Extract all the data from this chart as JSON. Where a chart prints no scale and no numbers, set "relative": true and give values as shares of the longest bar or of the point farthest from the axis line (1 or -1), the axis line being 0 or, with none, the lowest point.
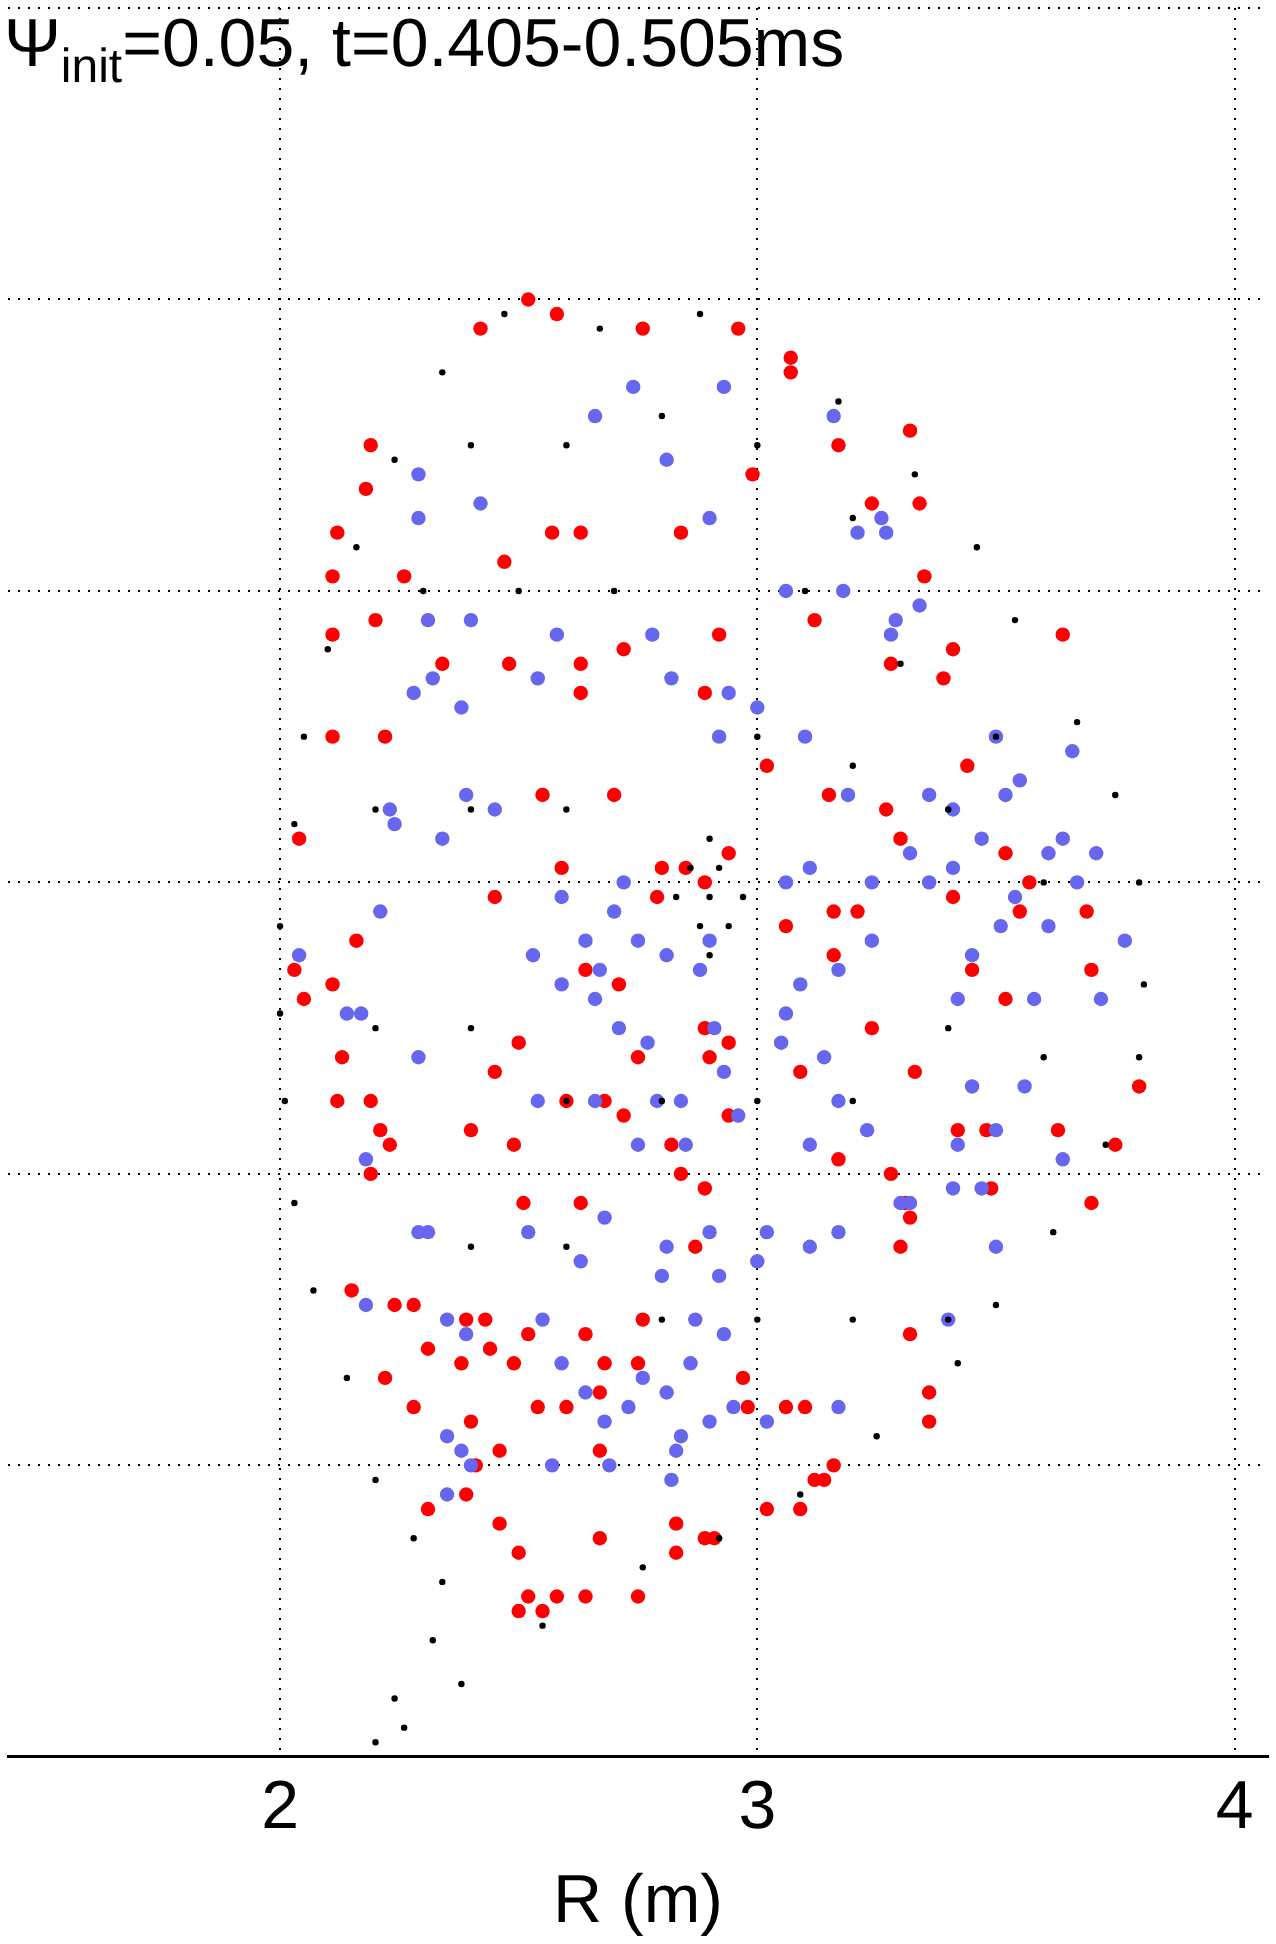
{
  "chart_data": {
    "type": "scatter",
    "title": "Ψ$_{init}$=0.05, t=0.405-0.505ms",
    "xlabel": "R (m)",
    "xlim": [
      1.43,
      4.07
    ],
    "xticks": [
      2,
      3,
      4
    ],
    "relative": true,
    "grid": true,
    "tick_labels": "x",
    "marker": "circle",
    "legend": false,
    "series": [
      {
        "color": "#000000",
        "x": [
          2.47,
          2.67,
          2.88,
          3.17,
          3.33,
          3.46,
          3.54,
          3.67,
          3.75,
          3.8,
          3.81,
          3.8,
          3.73,
          3.62,
          3.5,
          3.42,
          3.25,
          3.09,
          2.92,
          2.76,
          2.55,
          2.38,
          2.26,
          2.2,
          2.24,
          2.32,
          2.34,
          2.28,
          2.2,
          2.14,
          2.07,
          2.03,
          2.01,
          2,
          2,
          2.03,
          2.05,
          2.1,
          2.16,
          2.24,
          2.34,
          2.9,
          2.97,
          2.9,
          2.83,
          2.92,
          2.88,
          2.94,
          2.86,
          2.9,
          2.4,
          2.6,
          2.8,
          3.0,
          3.2,
          2.3,
          2.5,
          2.7,
          3.1,
          3.3,
          3.5,
          2.2,
          2.4,
          2.6,
          3.0,
          3.2,
          3.4,
          3.6,
          2.2,
          2.4,
          2.6,
          2.8,
          3.0,
          3.2,
          3.4,
          3.6,
          2.4,
          2.6,
          2.8,
          3.0,
          3.2,
          3.4
        ],
        "values": [
          0.99,
          0.98,
          0.99,
          0.93,
          0.88,
          0.83,
          0.78,
          0.71,
          0.66,
          0.6,
          0.53,
          0.48,
          0.42,
          0.36,
          0.31,
          0.27,
          0.22,
          0.18,
          0.15,
          0.13,
          0.09,
          0.05,
          0.02,
          0.01,
          0.04,
          0.08,
          0.12,
          0.15,
          0.19,
          0.26,
          0.32,
          0.38,
          0.45,
          0.51,
          0.57,
          0.64,
          0.7,
          0.76,
          0.83,
          0.89,
          0.95,
          0.63,
          0.59,
          0.55,
          0.59,
          0.61,
          0.57,
          0.57,
          0.61,
          0.59,
          0.9,
          0.9,
          0.92,
          0.9,
          0.85,
          0.8,
          0.8,
          0.8,
          0.8,
          0.75,
          0.7,
          0.65,
          0.65,
          0.65,
          0.7,
          0.68,
          0.65,
          0.6,
          0.5,
          0.5,
          0.45,
          0.45,
          0.45,
          0.45,
          0.5,
          0.48,
          0.35,
          0.35,
          0.3,
          0.3,
          0.3,
          0.3
        ]
      },
      {
        "color": "#6666ee",
        "x": [
          2.74,
          2.93,
          2.66,
          3.16,
          2.81,
          2.29,
          2.42,
          2.29,
          2.9,
          3.26,
          3.21,
          3.27,
          3.06,
          3.28,
          3.29,
          3.18,
          3.34,
          2.31,
          2.4,
          2.58,
          2.32,
          2.28,
          2.38,
          2.54,
          2.78,
          2.82,
          2.94,
          2.92,
          3.1,
          3.0,
          3.19,
          3.52,
          3.5,
          3.66,
          3.36,
          3.41,
          3.55,
          3.64,
          3.61,
          3.71,
          3.47,
          3.41,
          3.36,
          3.67,
          3.32,
          3.51,
          3.54,
          3.24,
          3.24,
          3.11,
          3.06,
          2.7,
          2.45,
          2.39,
          2.23,
          2.24,
          2.34,
          2.04,
          2.21,
          2.17,
          2.14,
          2.59,
          2.72,
          2.66,
          2.64,
          2.75,
          2.67,
          2.53,
          2.59,
          2.81,
          2.9,
          2.88,
          3.09,
          3.17,
          3.61,
          3.77,
          3.45,
          3.42,
          3.72,
          3.58,
          2.71,
          2.77,
          2.91,
          3.05,
          3.06,
          2.29,
          2.84,
          2.96,
          2.93,
          2.79,
          2.66,
          2.54,
          2.75,
          2.85,
          3.14,
          3.11,
          3.17,
          3.23,
          3.42,
          3.5,
          3.56,
          3.64,
          3.45,
          3.41,
          3.47,
          3.32,
          3.3,
          3.17,
          3.02,
          2.52,
          2.29,
          2.18,
          2.68,
          2.81,
          2.9,
          3.0,
          2.63,
          2.8,
          2.92,
          2.87,
          2.93,
          2.81,
          3.11,
          2.76,
          2.86,
          2.39,
          2.31,
          2.18,
          2.35,
          2.55,
          2.59,
          2.64,
          2.68,
          2.73,
          2.84,
          2.95,
          2.9,
          3.02,
          3.17,
          3.4,
          3.5,
          2.38,
          2.69,
          2.35,
          2.4,
          2.35,
          2.57,
          2.82,
          2.83
        ],
        "values": [
          0.94,
          0.94,
          0.92,
          0.92,
          0.89,
          0.88,
          0.86,
          0.85,
          0.85,
          0.85,
          0.84,
          0.84,
          0.8,
          0.77,
          0.78,
          0.8,
          0.79,
          0.78,
          0.78,
          0.77,
          0.74,
          0.73,
          0.72,
          0.74,
          0.77,
          0.74,
          0.73,
          0.7,
          0.7,
          0.72,
          0.66,
          0.66,
          0.7,
          0.69,
          0.66,
          0.65,
          0.67,
          0.63,
          0.62,
          0.62,
          0.63,
          0.61,
          0.6,
          0.6,
          0.62,
          0.57,
          0.59,
          0.56,
          0.6,
          0.61,
          0.6,
          0.58,
          0.65,
          0.66,
          0.65,
          0.64,
          0.63,
          0.55,
          0.58,
          0.51,
          0.51,
          0.59,
          0.6,
          0.52,
          0.56,
          0.56,
          0.54,
          0.55,
          0.53,
          0.55,
          0.56,
          0.54,
          0.53,
          0.54,
          0.57,
          0.56,
          0.55,
          0.52,
          0.52,
          0.52,
          0.5,
          0.49,
          0.5,
          0.49,
          0.51,
          0.48,
          0.45,
          0.44,
          0.47,
          0.45,
          0.45,
          0.45,
          0.42,
          0.42,
          0.48,
          0.42,
          0.45,
          0.43,
          0.42,
          0.43,
          0.46,
          0.41,
          0.46,
          0.39,
          0.39,
          0.38,
          0.38,
          0.36,
          0.36,
          0.36,
          0.36,
          0.41,
          0.37,
          0.35,
          0.36,
          0.34,
          0.34,
          0.33,
          0.33,
          0.3,
          0.29,
          0.25,
          0.35,
          0.26,
          0.27,
          0.29,
          0.36,
          0.31,
          0.3,
          0.3,
          0.27,
          0.25,
          0.23,
          0.24,
          0.22,
          0.24,
          0.23,
          0.23,
          0.24,
          0.3,
          0.35,
          0.21,
          0.2,
          0.22,
          0.2,
          0.18,
          0.2,
          0.19,
          0.21
        ]
      },
      {
        "color": "#ff0000",
        "x": [
          2.52,
          2.42,
          2.58,
          2.76,
          2.96,
          3.07,
          3.07,
          2.19,
          2.11,
          2.12,
          2.18,
          2.57,
          2.63,
          2.84,
          2.99,
          3.17,
          3.32,
          3.34,
          3.24,
          3.35,
          2.47,
          2.2,
          2.11,
          2.26,
          2.63,
          2.34,
          2.72,
          2.92,
          3.12,
          3.39,
          3.41,
          3.64,
          2.11,
          2.48,
          2.89,
          2.22,
          2.7,
          2.55,
          2.63,
          3.02,
          3.15,
          3.28,
          3.41,
          3.27,
          3.57,
          3.8,
          2.04,
          2.16,
          2.05,
          2.11,
          2.45,
          2.59,
          2.71,
          2.79,
          2.8,
          2.94,
          3.06,
          3.16,
          3.21,
          3.3,
          3.44,
          3.52,
          3.55,
          3.69,
          3.7,
          3.52,
          3.16,
          2.85,
          2.89,
          2.64,
          2.03,
          2.13,
          2.45,
          2.72,
          2.68,
          2.9,
          2.94,
          3.24,
          3.45,
          2.12,
          2.19,
          2.21,
          2.23,
          2.19,
          2.4,
          2.49,
          2.51,
          2.5,
          2.6,
          2.63,
          2.75,
          2.89,
          2.82,
          2.89,
          3.09,
          2.94,
          3.17,
          3.33,
          3.28,
          3.42,
          3.48,
          3.49,
          3.63,
          3.75,
          3.7,
          3.31,
          3.32,
          2.15,
          2.24,
          2.28,
          2.39,
          2.43,
          2.52,
          2.38,
          2.44,
          2.49,
          2.31,
          2.4,
          2.64,
          2.54,
          2.6,
          2.67,
          2.68,
          2.75,
          2.76,
          2.84,
          2.87,
          2.97,
          2.98,
          3.06,
          3.1,
          3.3,
          3.32,
          3.36,
          3.36,
          2.22,
          2.28,
          2.31,
          2.41,
          2.46,
          2.67,
          2.46,
          2.39,
          2.5,
          2.83,
          2.89,
          3.02,
          3.09,
          3.12,
          3.14,
          3.16,
          2.83,
          2.91,
          2.67,
          2.52,
          2.55,
          2.58,
          2.5,
          2.64,
          2.75
        ],
        "values": [
          1.0,
          0.98,
          0.99,
          0.98,
          0.98,
          0.96,
          0.95,
          0.9,
          0.81,
          0.84,
          0.87,
          0.84,
          0.84,
          0.84,
          0.88,
          0.9,
          0.91,
          0.86,
          0.86,
          0.81,
          0.82,
          0.78,
          0.77,
          0.81,
          0.75,
          0.75,
          0.76,
          0.77,
          0.78,
          0.74,
          0.76,
          0.77,
          0.7,
          0.75,
          0.73,
          0.7,
          0.66,
          0.66,
          0.73,
          0.68,
          0.66,
          0.75,
          0.59,
          0.65,
          0.6,
          0.46,
          0.63,
          0.56,
          0.52,
          0.53,
          0.59,
          0.61,
          0.53,
          0.59,
          0.61,
          0.62,
          0.57,
          0.58,
          0.58,
          0.63,
          0.68,
          0.62,
          0.58,
          0.58,
          0.54,
          0.52,
          0.55,
          0.61,
          0.6,
          0.54,
          0.54,
          0.48,
          0.47,
          0.44,
          0.45,
          0.48,
          0.49,
          0.5,
          0.54,
          0.45,
          0.45,
          0.43,
          0.42,
          0.4,
          0.43,
          0.42,
          0.38,
          0.49,
          0.45,
          0.38,
          0.48,
          0.39,
          0.42,
          0.5,
          0.47,
          0.44,
          0.41,
          0.47,
          0.4,
          0.43,
          0.43,
          0.39,
          0.43,
          0.42,
          0.38,
          0.38,
          0.37,
          0.32,
          0.31,
          0.31,
          0.3,
          0.3,
          0.29,
          0.27,
          0.28,
          0.27,
          0.28,
          0.23,
          0.29,
          0.24,
          0.24,
          0.25,
          0.27,
          0.27,
          0.3,
          0.4,
          0.35,
          0.26,
          0.24,
          0.24,
          0.24,
          0.35,
          0.29,
          0.25,
          0.23,
          0.26,
          0.24,
          0.17,
          0.2,
          0.21,
          0.21,
          0.16,
          0.18,
          0.14,
          0.16,
          0.15,
          0.17,
          0.17,
          0.19,
          0.19,
          0.2,
          0.14,
          0.15,
          0.15,
          0.11,
          0.1,
          0.11,
          0.1,
          0.11,
          0.11
        ]
      }
    ]
  }
}
